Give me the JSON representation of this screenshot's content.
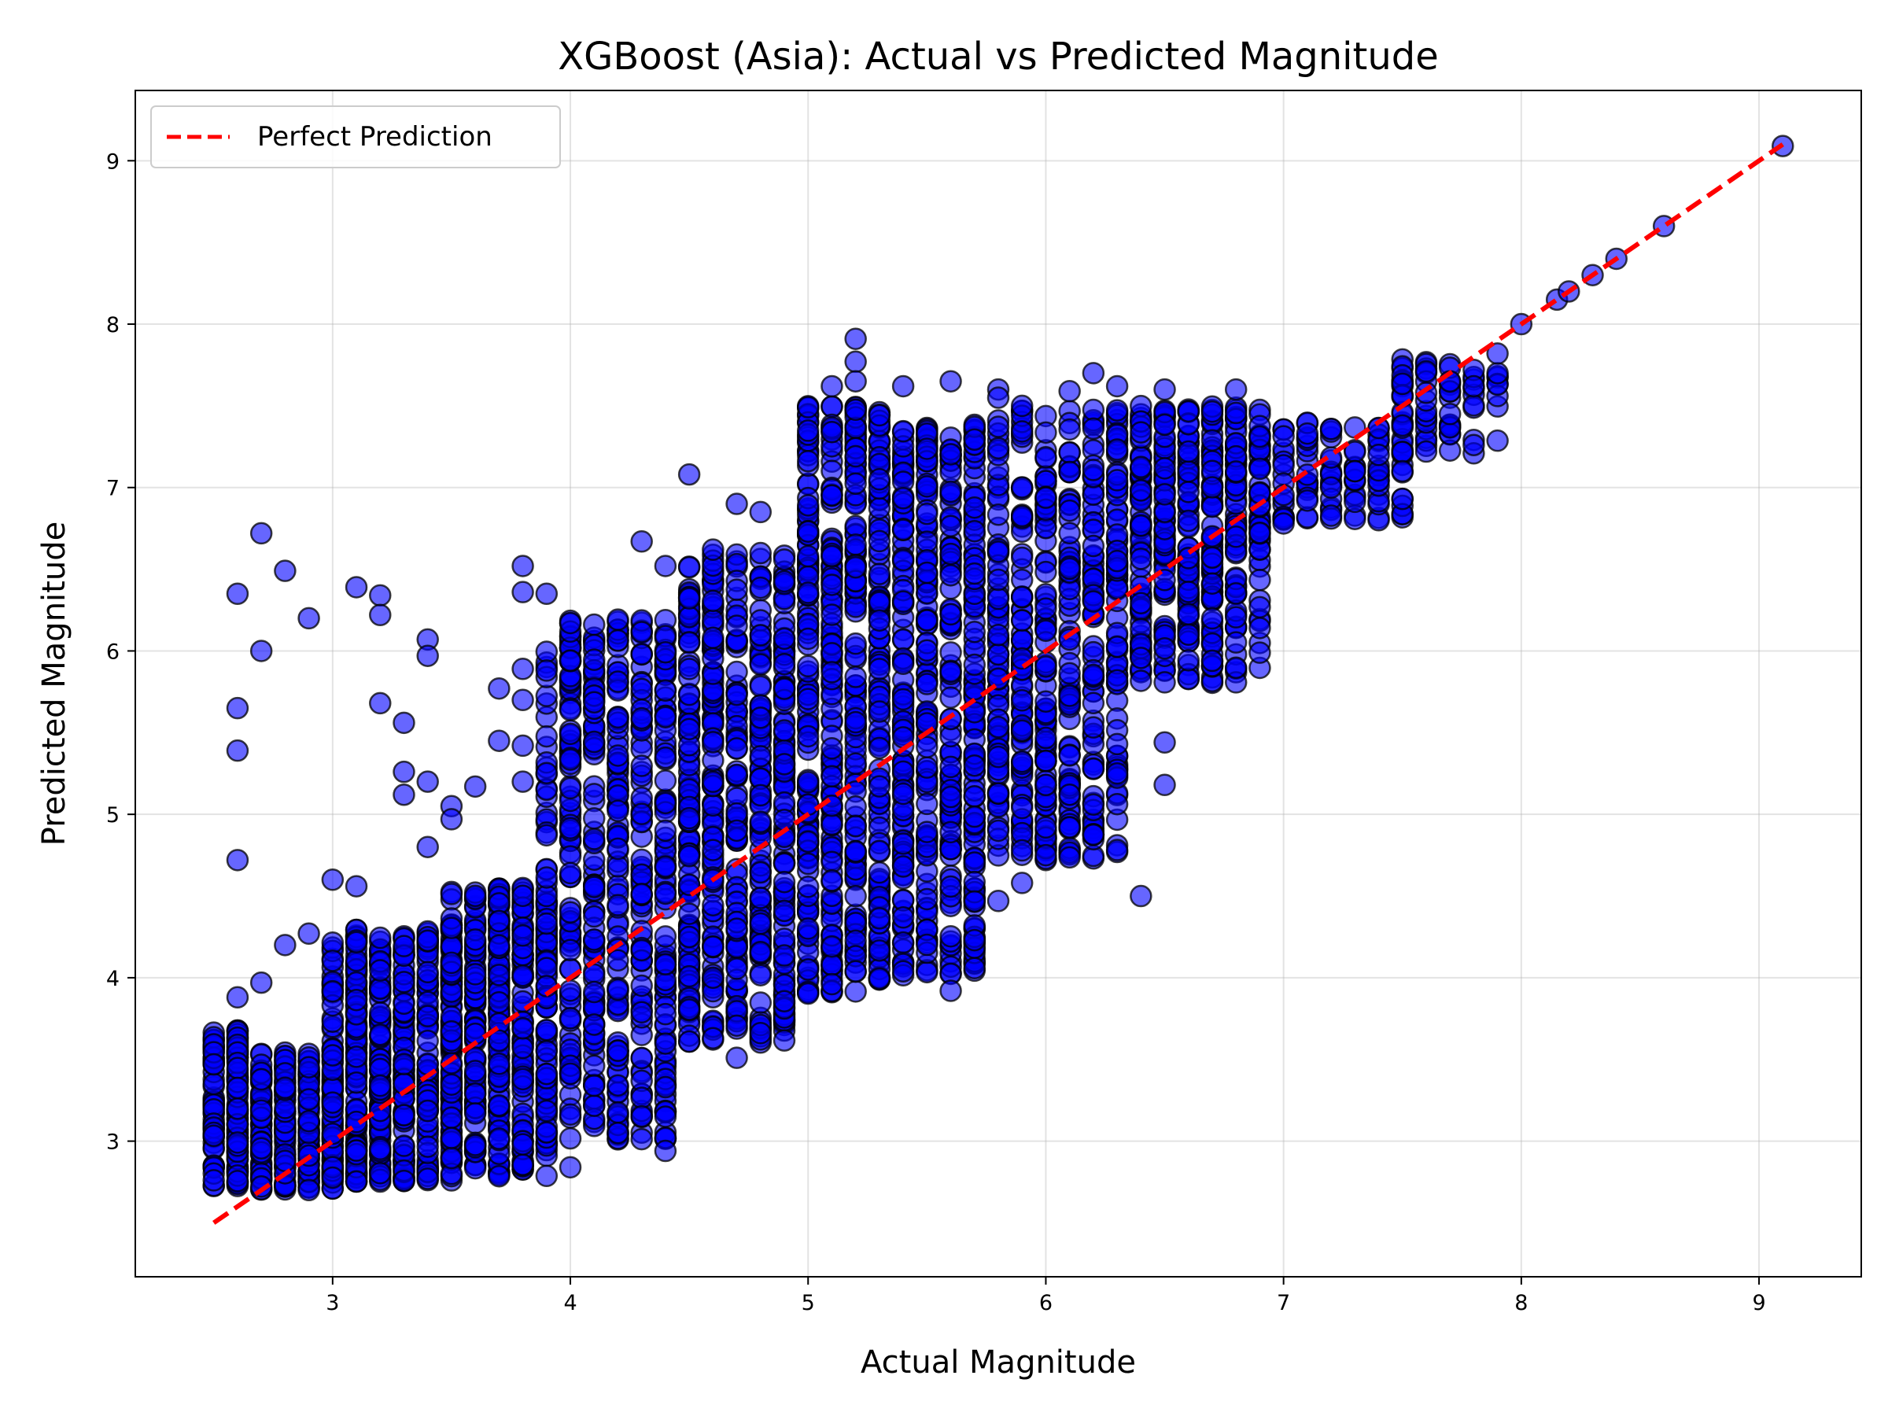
{
  "chart_data": {
    "type": "scatter",
    "title": "XGBoost (Asia): Actual vs Predicted Magnitude",
    "xlabel": "Actual Magnitude",
    "ylabel": "Predicted Magnitude",
    "xlim": [
      2.17,
      9.43
    ],
    "ylim": [
      2.17,
      9.43
    ],
    "xticks": [
      "3",
      "4",
      "5",
      "6",
      "7",
      "8",
      "9"
    ],
    "yticks": [
      "3",
      "4",
      "5",
      "6",
      "7",
      "8",
      "9"
    ],
    "grid": true,
    "legend": {
      "position": "top-left",
      "entries": [
        "Perfect Prediction"
      ]
    },
    "reference_line": {
      "name": "Perfect Prediction",
      "x": [
        2.5,
        9.1
      ],
      "y": [
        2.5,
        9.1
      ],
      "color": "#ff0000",
      "style": "dashed"
    },
    "series": [
      {
        "name": "",
        "color": "#0000ff",
        "edge_color": "#000000",
        "opacity": 0.6,
        "clusters": [
          {
            "x": [
              2.5,
              2.62
            ],
            "y": [
              2.72,
              3.68
            ],
            "count": 140
          },
          {
            "x": [
              2.62,
              3.0
            ],
            "y": [
              2.7,
              3.55
            ],
            "count": 260
          },
          {
            "x": [
              3.0,
              3.5
            ],
            "y": [
              2.75,
              4.3
            ],
            "count": 460
          },
          {
            "x": [
              3.5,
              3.9
            ],
            "y": [
              2.78,
              4.55
            ],
            "count": 380
          },
          {
            "x": [
              3.9,
              4.45
            ],
            "y": [
              3.0,
              6.2
            ],
            "count": 520
          },
          {
            "x": [
              4.45,
              4.95
            ],
            "y": [
              3.6,
              6.6
            ],
            "count": 520
          },
          {
            "x": [
              4.95,
              5.4
            ],
            "y": [
              3.9,
              7.5
            ],
            "count": 560
          },
          {
            "x": [
              5.4,
              5.75
            ],
            "y": [
              4.0,
              7.4
            ],
            "count": 400
          },
          {
            "x": [
              5.75,
              6.3
            ],
            "y": [
              4.7,
              7.5
            ],
            "count": 440
          },
          {
            "x": [
              6.3,
              6.9
            ],
            "y": [
              5.8,
              7.5
            ],
            "count": 420
          },
          {
            "x": [
              6.9,
              7.5
            ],
            "y": [
              6.8,
              7.4
            ],
            "count": 110
          },
          {
            "x": [
              7.5,
              7.9
            ],
            "y": [
              7.2,
              7.8
            ],
            "count": 60
          }
        ],
        "points": [
          [
            2.6,
            6.35
          ],
          [
            2.7,
            6.72
          ],
          [
            2.8,
            6.49
          ],
          [
            2.9,
            6.2
          ],
          [
            2.7,
            6.0
          ],
          [
            2.6,
            5.65
          ],
          [
            2.6,
            5.39
          ],
          [
            2.6,
            4.72
          ],
          [
            3.1,
            6.39
          ],
          [
            3.2,
            6.34
          ],
          [
            3.2,
            6.22
          ],
          [
            3.4,
            6.07
          ],
          [
            3.4,
            5.97
          ],
          [
            3.2,
            5.68
          ],
          [
            3.3,
            5.56
          ],
          [
            3.3,
            5.26
          ],
          [
            3.4,
            5.2
          ],
          [
            3.3,
            5.12
          ],
          [
            3.5,
            5.05
          ],
          [
            3.5,
            4.97
          ],
          [
            3.4,
            4.8
          ],
          [
            3.7,
            5.77
          ],
          [
            3.7,
            5.45
          ],
          [
            3.8,
            6.52
          ],
          [
            3.8,
            6.36
          ],
          [
            3.9,
            6.35
          ],
          [
            3.8,
            5.89
          ],
          [
            3.9,
            5.88
          ],
          [
            3.8,
            5.7
          ],
          [
            3.6,
            5.17
          ],
          [
            3.8,
            5.42
          ],
          [
            3.8,
            5.2
          ],
          [
            3.0,
            4.6
          ],
          [
            3.1,
            4.56
          ],
          [
            2.7,
            3.97
          ],
          [
            2.8,
            4.2
          ],
          [
            2.9,
            4.27
          ],
          [
            2.6,
            3.88
          ],
          [
            4.5,
            7.08
          ],
          [
            4.3,
            6.67
          ],
          [
            4.4,
            6.52
          ],
          [
            4.7,
            6.9
          ],
          [
            4.8,
            6.85
          ],
          [
            4.6,
            6.62
          ],
          [
            5.1,
            7.62
          ],
          [
            5.2,
            7.91
          ],
          [
            5.2,
            7.77
          ],
          [
            5.2,
            7.65
          ],
          [
            5.4,
            7.62
          ],
          [
            5.6,
            7.65
          ],
          [
            5.8,
            7.6
          ],
          [
            5.8,
            7.55
          ],
          [
            6.2,
            7.7
          ],
          [
            6.3,
            7.62
          ],
          [
            6.5,
            7.6
          ],
          [
            6.8,
            7.6
          ],
          [
            6.1,
            7.59
          ],
          [
            4.4,
            3.33
          ],
          [
            4.4,
            3.15
          ],
          [
            4.4,
            2.94
          ],
          [
            4.2,
            3.05
          ],
          [
            4.6,
            3.63
          ],
          [
            4.7,
            3.51
          ],
          [
            4.0,
            2.84
          ],
          [
            5.6,
            3.92
          ],
          [
            5.7,
            4.32
          ],
          [
            5.7,
            4.23
          ],
          [
            5.8,
            4.47
          ],
          [
            5.9,
            4.58
          ],
          [
            5.8,
            4.85
          ],
          [
            5.8,
            4.9
          ],
          [
            6.0,
            4.75
          ],
          [
            6.1,
            4.92
          ],
          [
            6.1,
            5.12
          ],
          [
            6.0,
            5.18
          ],
          [
            6.0,
            4.92
          ],
          [
            6.1,
            5.36
          ],
          [
            6.2,
            5.06
          ],
          [
            6.3,
            5.25
          ],
          [
            6.5,
            5.18
          ],
          [
            6.5,
            5.44
          ],
          [
            6.3,
            5.43
          ],
          [
            6.4,
            4.5
          ],
          [
            6.7,
            5.94
          ],
          [
            5.0,
            4.05
          ],
          [
            4.7,
            4.3
          ],
          [
            4.5,
            4.25
          ],
          [
            7.0,
            6.78
          ],
          [
            7.1,
            6.92
          ],
          [
            7.2,
            7.0
          ],
          [
            7.3,
            7.1
          ],
          [
            7.4,
            7.2
          ],
          [
            7.5,
            7.1
          ],
          [
            7.6,
            7.22
          ],
          [
            7.7,
            7.45
          ],
          [
            7.8,
            7.26
          ],
          [
            7.6,
            7.58
          ],
          [
            7.7,
            7.65
          ],
          [
            7.8,
            7.72
          ],
          [
            7.8,
            7.62
          ],
          [
            7.9,
            7.56
          ],
          [
            7.9,
            7.63
          ],
          [
            7.9,
            7.7
          ],
          [
            7.9,
            7.82
          ],
          [
            8.0,
            8.0
          ],
          [
            8.15,
            8.15
          ],
          [
            8.2,
            8.2
          ],
          [
            8.3,
            8.3
          ],
          [
            8.4,
            8.4
          ],
          [
            8.6,
            8.6
          ],
          [
            9.1,
            9.09
          ]
        ]
      }
    ]
  }
}
